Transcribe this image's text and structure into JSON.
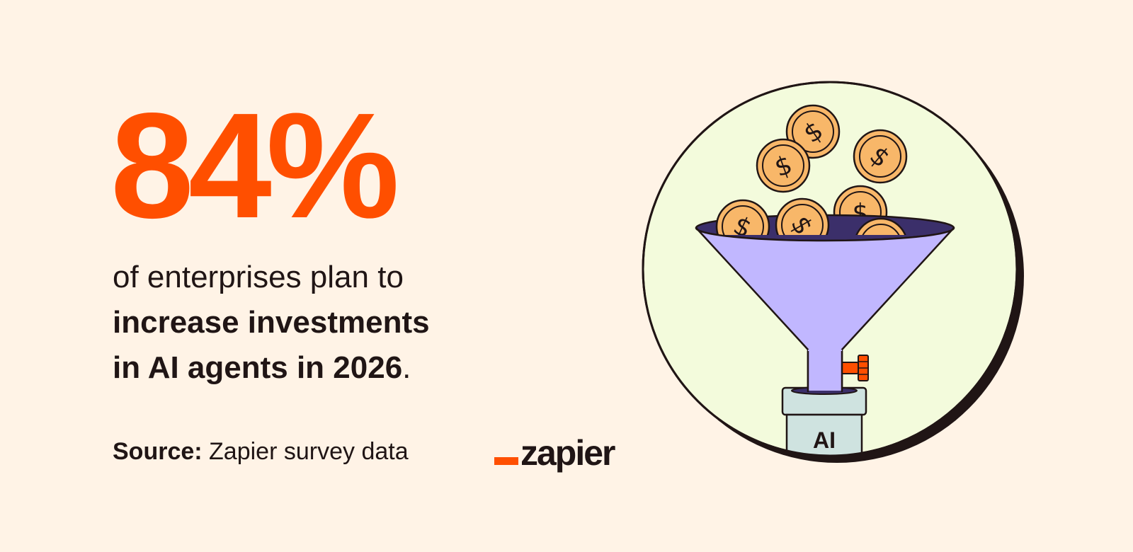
{
  "stat": {
    "value": "84%"
  },
  "headline": {
    "line1": "of enterprises plan to",
    "line2": "increase investments",
    "line3_bold": "in AI agents in 2026",
    "line3_end": "."
  },
  "source": {
    "label": "Source:",
    "text": " Zapier survey data"
  },
  "brand": {
    "name": "zapier"
  },
  "illustration": {
    "jar_label": "AI",
    "coin_symbol": "$"
  },
  "colors": {
    "background": "#fff3e6",
    "accent": "#ff4f00",
    "circle_fill": "#f3fbdc",
    "funnel": "#c1b7ff",
    "funnel_mouth": "#3b2f6a",
    "coin": "#f8b769",
    "jar": "#cfe3e0",
    "ink": "#201515"
  }
}
